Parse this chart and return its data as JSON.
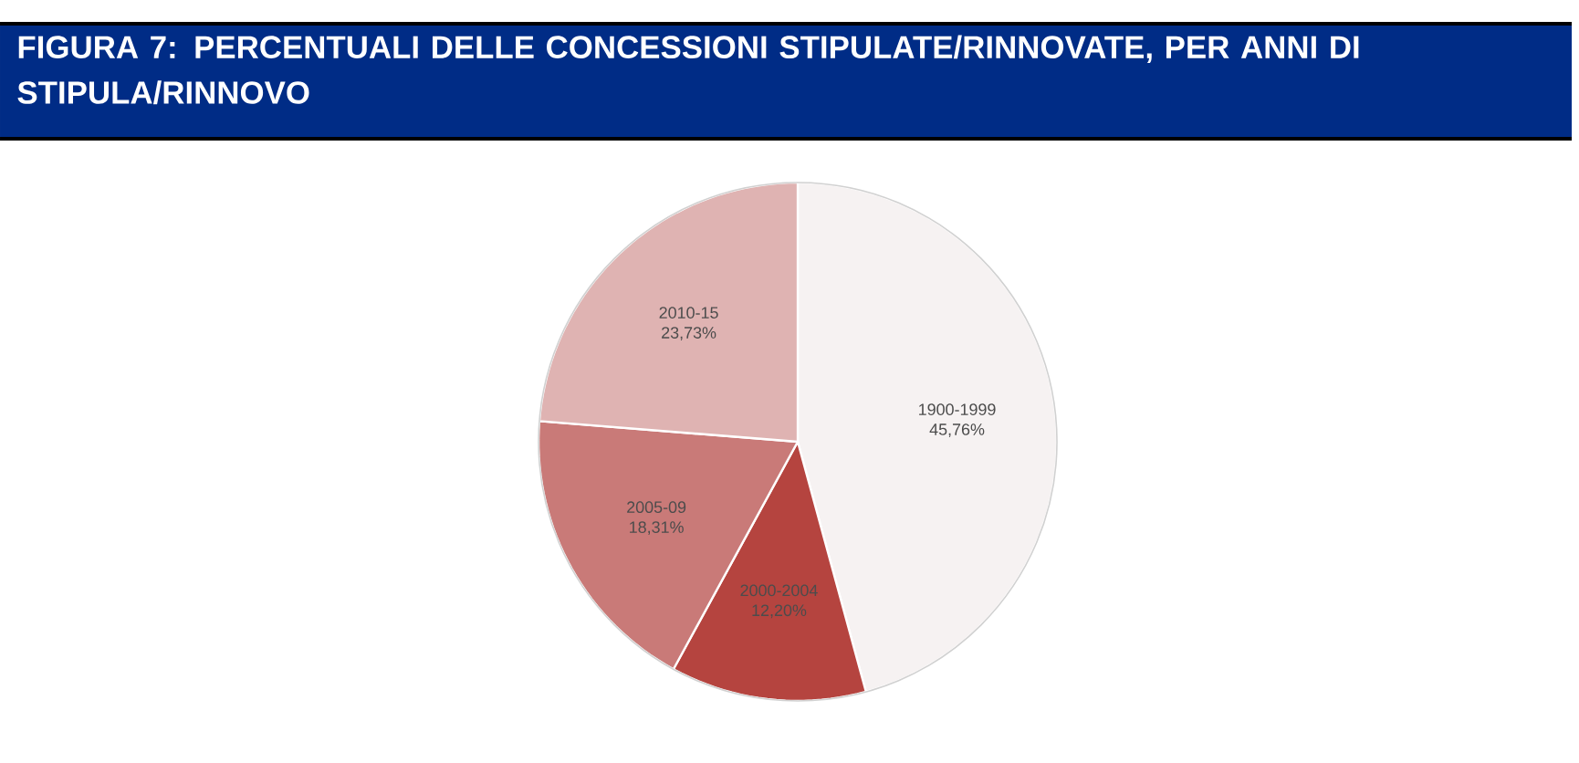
{
  "chart_data": {
    "type": "pie",
    "title": "FIGURA 7: PERCENTUALI DELLE CONCESSIONI STIPULATE/RINNOVATE, PER ANNI DI STIPULA/RINNOVO",
    "categories": [
      "1900-1999",
      "2000-2004",
      "2005-09",
      "2010-15"
    ],
    "values": [
      45.76,
      12.2,
      18.31,
      23.73
    ],
    "value_labels": [
      "45,76%",
      "12,20%",
      "18,31%",
      "23,73%"
    ],
    "colors": [
      "#f6f2f2",
      "#b5443f",
      "#c97a78",
      "#dfb3b2"
    ]
  }
}
